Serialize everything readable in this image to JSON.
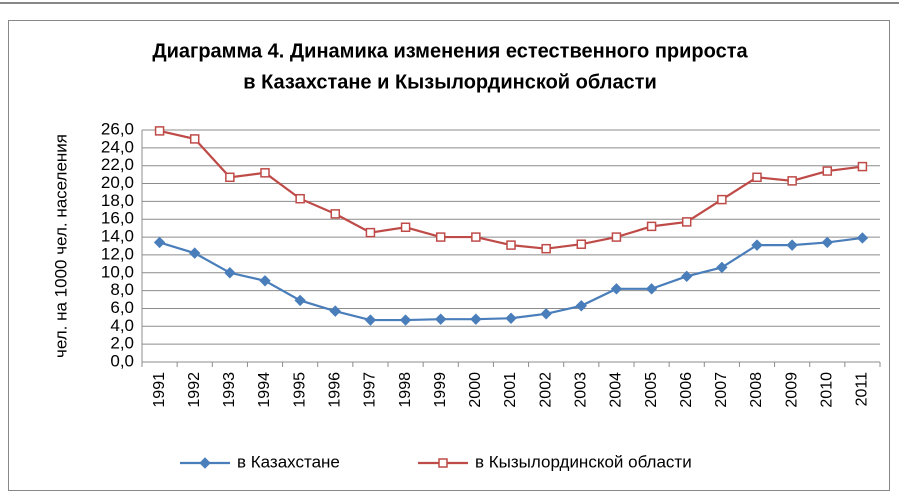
{
  "chart_data": {
    "type": "line",
    "title": [
      "Диаграмма 4. Динамика изменения естественного прироста",
      "в Казахстане и Кызылординской области"
    ],
    "y_label": "чел. на 1000 чел. населения",
    "categories": [
      "1991",
      "1992",
      "1993",
      "1994",
      "1995",
      "1996",
      "1997",
      "1998",
      "1999",
      "2000",
      "2001",
      "2002",
      "2003",
      "2004",
      "2005",
      "2006",
      "2007",
      "2008",
      "2009",
      "2010",
      "2011"
    ],
    "series": [
      {
        "name": "в Казахстане",
        "color": "#4a7ebb",
        "marker": "diamond",
        "values": [
          13.4,
          12.2,
          10.0,
          9.1,
          6.9,
          5.7,
          4.7,
          4.7,
          4.8,
          4.8,
          4.9,
          5.4,
          6.3,
          8.2,
          8.2,
          9.6,
          10.6,
          13.1,
          13.1,
          13.4,
          13.9
        ]
      },
      {
        "name": "в Кызылординской области",
        "color": "#be4b48",
        "marker": "square",
        "values": [
          25.9,
          25.0,
          20.7,
          21.2,
          18.3,
          16.6,
          14.5,
          15.1,
          14.0,
          14.0,
          13.1,
          12.7,
          13.2,
          14.0,
          15.2,
          15.7,
          18.2,
          20.7,
          20.3,
          21.4,
          21.9
        ]
      }
    ],
    "ylim": [
      0,
      26
    ],
    "yticks": [
      {
        "value": 0,
        "label": "0,0"
      },
      {
        "value": 2,
        "label": "2,0"
      },
      {
        "value": 4,
        "label": "4,0"
      },
      {
        "value": 6,
        "label": "6,0"
      },
      {
        "value": 8,
        "label": "8,0"
      },
      {
        "value": 10,
        "label": "10,0"
      },
      {
        "value": 12,
        "label": "12,0"
      },
      {
        "value": 14,
        "label": "14,0"
      },
      {
        "value": 16,
        "label": "16,0"
      },
      {
        "value": 18,
        "label": "18,0"
      },
      {
        "value": 20,
        "label": "20,0"
      },
      {
        "value": 22,
        "label": "22,0"
      },
      {
        "value": 24,
        "label": "24,0"
      },
      {
        "value": 26,
        "label": "26,0"
      }
    ],
    "grid": true,
    "legend": "bottom"
  }
}
